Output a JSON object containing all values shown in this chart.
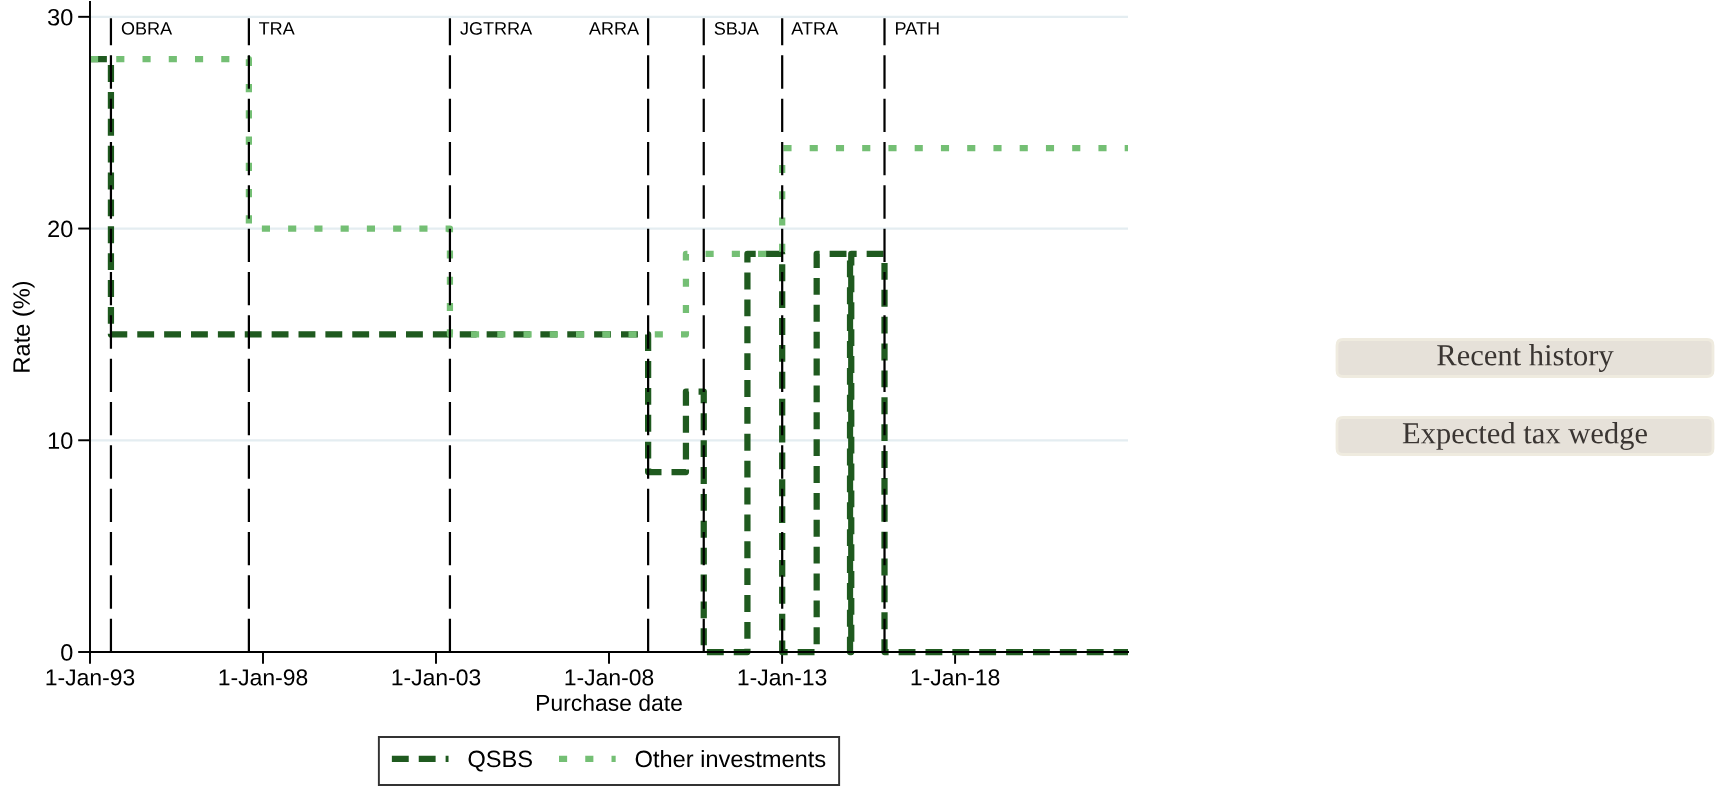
{
  "chart_data": {
    "type": "step",
    "xlabel": "Purchase date",
    "ylabel": "Rate (%)",
    "xlim": [
      "1993-01-01",
      "2022-12-31"
    ],
    "ylim": [
      0,
      30.7
    ],
    "xticks": [
      {
        "value": "1993-01-01",
        "label": "1-Jan-93"
      },
      {
        "value": "1998-01-01",
        "label": "1-Jan-98"
      },
      {
        "value": "2003-01-01",
        "label": "1-Jan-03"
      },
      {
        "value": "2008-01-01",
        "label": "1-Jan-08"
      },
      {
        "value": "2013-01-01",
        "label": "1-Jan-13"
      },
      {
        "value": "2018-01-01",
        "label": "1-Jan-18"
      }
    ],
    "yticks": [
      0,
      10,
      20,
      30
    ],
    "grid": "y",
    "legend": "bottom",
    "series": [
      {
        "name": "QSBS",
        "color": "#1f5a1f",
        "line_style": "dashed",
        "x": [
          "1993-01-01",
          "1993-08-10",
          "2009-02-17",
          "2010-03-23",
          "2010-09-27",
          "2012-01-01",
          "2013-01-02",
          "2014-01-01",
          "2014-12-19",
          "2015-01-01",
          "2015-12-18",
          "2022-12-31"
        ],
        "values": [
          28,
          15,
          8.5,
          12.3,
          0,
          18.8,
          0,
          18.8,
          0,
          18.8,
          0,
          0
        ]
      },
      {
        "name": "Other investments",
        "color": "#74bf74",
        "line_style": "dotted",
        "x": [
          "1993-01-01",
          "1997-08-05",
          "2003-05-28",
          "2010-03-23",
          "2013-01-02",
          "2022-12-31"
        ],
        "values": [
          28,
          20,
          15,
          18.8,
          23.8,
          23.8
        ]
      }
    ],
    "ref_lines": [
      {
        "axis": "x",
        "value": "1993-08-10",
        "label": "OBRA",
        "color": "#000000",
        "line_style": "dashed"
      },
      {
        "axis": "x",
        "value": "1997-08-05",
        "label": "TRA",
        "color": "#000000",
        "line_style": "dashed"
      },
      {
        "axis": "x",
        "value": "2003-05-28",
        "label": "JGTRRA",
        "color": "#000000",
        "line_style": "dashed"
      },
      {
        "axis": "x",
        "value": "2009-02-17",
        "label": "ARRA",
        "color": "#000000",
        "line_style": "dashed"
      },
      {
        "axis": "x",
        "value": "2010-09-27",
        "label": "SBJA",
        "color": "#000000",
        "line_style": "dashed"
      },
      {
        "axis": "x",
        "value": "2013-01-02",
        "label": "ATRA",
        "color": "#000000",
        "line_style": "dashed"
      },
      {
        "axis": "x",
        "value": "2015-12-18",
        "label": "PATH",
        "color": "#000000",
        "line_style": "dashed"
      }
    ],
    "annotations": [
      "Recent history",
      "Expected tax wedge"
    ]
  }
}
